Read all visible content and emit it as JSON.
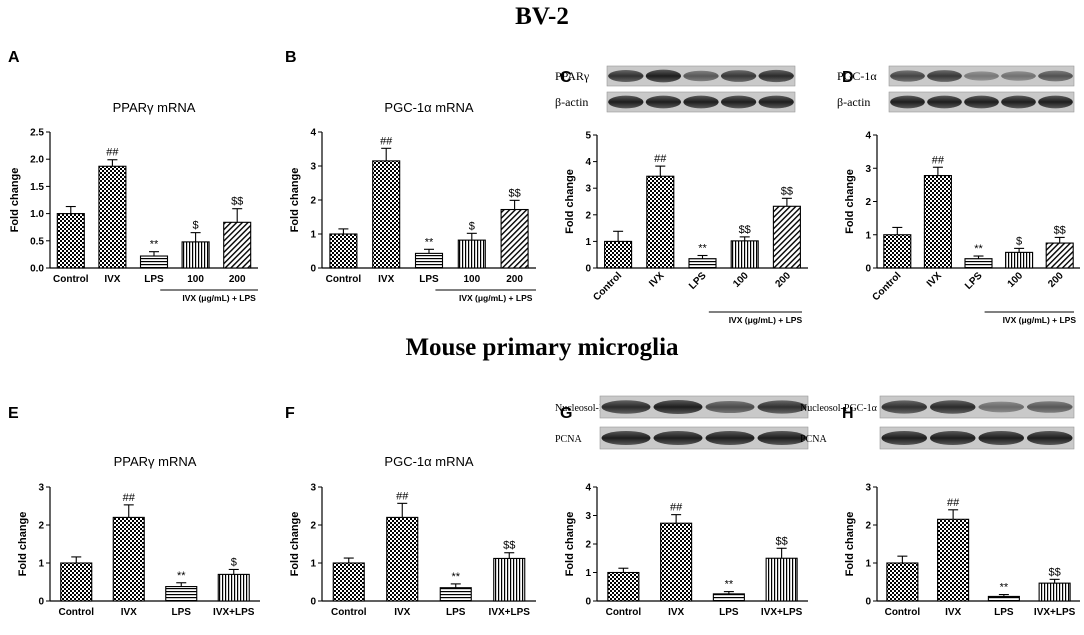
{
  "sections": [
    {
      "title": "BV-2"
    },
    {
      "title": "Mouse primary microglia"
    }
  ],
  "colors": {
    "bar_stroke": "#000000",
    "background": "#ffffff"
  },
  "chart_data": [
    {
      "panel": "A",
      "type": "bar",
      "title": "PPARγ mRNA",
      "ylabel": "Fold change",
      "categories": [
        "Control",
        "IVX",
        "LPS",
        "100",
        "200"
      ],
      "values": [
        1.0,
        1.87,
        0.22,
        0.48,
        0.84
      ],
      "errors": [
        0.13,
        0.12,
        0.08,
        0.17,
        0.25
      ],
      "annotations": [
        "",
        "##",
        "**",
        "$",
        "$$"
      ],
      "patterns": [
        "check",
        "check",
        "hstripe",
        "vstripe",
        "diag"
      ],
      "ylim": [
        0,
        2.5
      ],
      "yticks": [
        0,
        0.5,
        1.0,
        1.5,
        2.0,
        2.5
      ],
      "tick_labels": [
        "0.0",
        "0.5",
        "1.0",
        "1.5",
        "2.0",
        "2.5"
      ],
      "group_label": "IVX (μg/mL) + LPS",
      "xlabels_rotated": false
    },
    {
      "panel": "B",
      "type": "bar",
      "title": "PGC-1α mRNA",
      "ylabel": "Fold change",
      "categories": [
        "Control",
        "IVX",
        "LPS",
        "100",
        "200"
      ],
      "values": [
        1.0,
        3.15,
        0.43,
        0.82,
        1.72
      ],
      "errors": [
        0.15,
        0.37,
        0.12,
        0.2,
        0.27
      ],
      "annotations": [
        "",
        "##",
        "**",
        "$",
        "$$"
      ],
      "patterns": [
        "check",
        "check",
        "hstripe",
        "vstripe",
        "diag"
      ],
      "ylim": [
        0,
        4
      ],
      "yticks": [
        0,
        1,
        2,
        3,
        4
      ],
      "tick_labels": [
        "0",
        "1",
        "2",
        "3",
        "4"
      ],
      "group_label": "IVX (μg/mL) + LPS",
      "xlabels_rotated": false
    },
    {
      "panel": "C",
      "type": "bar",
      "ylabel": "Fold change",
      "categories": [
        "Control",
        "IVX",
        "LPS",
        "100",
        "200"
      ],
      "values": [
        1.0,
        3.45,
        0.35,
        1.02,
        2.32
      ],
      "errors": [
        0.38,
        0.38,
        0.12,
        0.15,
        0.3
      ],
      "annotations": [
        "",
        "##",
        "**",
        "$$",
        "$$"
      ],
      "patterns": [
        "check",
        "check",
        "hstripe",
        "vstripe",
        "diag"
      ],
      "ylim": [
        0,
        5
      ],
      "yticks": [
        0,
        1,
        2,
        3,
        4,
        5
      ],
      "tick_labels": [
        "0",
        "1",
        "2",
        "3",
        "4",
        "5"
      ],
      "group_label": "IVX (μg/mL) + LPS",
      "xlabels_rotated": true,
      "blot_labels": [
        "PPARγ",
        "β-actin"
      ]
    },
    {
      "panel": "D",
      "type": "bar",
      "ylabel": "Fold change",
      "categories": [
        "Control",
        "IVX",
        "LPS",
        "100",
        "200"
      ],
      "values": [
        1.0,
        2.78,
        0.28,
        0.47,
        0.75
      ],
      "errors": [
        0.22,
        0.25,
        0.08,
        0.12,
        0.17
      ],
      "annotations": [
        "",
        "##",
        "**",
        "$",
        "$$"
      ],
      "patterns": [
        "check",
        "check",
        "hstripe",
        "vstripe",
        "diag"
      ],
      "ylim": [
        0,
        4
      ],
      "yticks": [
        0,
        1,
        2,
        3,
        4
      ],
      "tick_labels": [
        "0",
        "1",
        "2",
        "3",
        "4"
      ],
      "group_label": "IVX (μg/mL) + LPS",
      "xlabels_rotated": true,
      "blot_labels": [
        "PGC-1α",
        "β-actin"
      ]
    },
    {
      "panel": "E",
      "type": "bar",
      "title": "PPARγ mRNA",
      "ylabel": "Fold change",
      "categories": [
        "Control",
        "IVX",
        "LPS",
        "IVX+LPS"
      ],
      "values": [
        1.0,
        2.2,
        0.38,
        0.7
      ],
      "errors": [
        0.16,
        0.33,
        0.1,
        0.13
      ],
      "annotations": [
        "",
        "##",
        "**",
        "$"
      ],
      "patterns": [
        "check",
        "check",
        "hstripe",
        "vstripe"
      ],
      "ylim": [
        0,
        3
      ],
      "yticks": [
        0,
        1,
        2,
        3
      ],
      "tick_labels": [
        "0",
        "1",
        "2",
        "3"
      ],
      "group_label": "",
      "xlabels_rotated": false
    },
    {
      "panel": "F",
      "type": "bar",
      "title": "PGC-1α mRNA",
      "ylabel": "Fold change",
      "categories": [
        "Control",
        "IVX",
        "LPS",
        "IVX+LPS"
      ],
      "values": [
        1.0,
        2.2,
        0.35,
        1.12
      ],
      "errors": [
        0.13,
        0.37,
        0.1,
        0.15
      ],
      "annotations": [
        "",
        "##",
        "**",
        "$$"
      ],
      "patterns": [
        "check",
        "check",
        "hstripe",
        "vstripe"
      ],
      "ylim": [
        0,
        3
      ],
      "yticks": [
        0,
        1,
        2,
        3
      ],
      "tick_labels": [
        "0",
        "1",
        "2",
        "3"
      ],
      "group_label": "",
      "xlabels_rotated": false
    },
    {
      "panel": "G",
      "type": "bar",
      "ylabel": "Fold change",
      "categories": [
        "Control",
        "IVX",
        "LPS",
        "IVX+LPS"
      ],
      "values": [
        1.0,
        2.73,
        0.25,
        1.5
      ],
      "errors": [
        0.15,
        0.3,
        0.08,
        0.35
      ],
      "annotations": [
        "",
        "##",
        "**",
        "$$"
      ],
      "patterns": [
        "check",
        "check",
        "hstripe",
        "vstripe"
      ],
      "ylim": [
        0,
        4
      ],
      "yticks": [
        0,
        1,
        2,
        3,
        4
      ],
      "tick_labels": [
        "0",
        "1",
        "2",
        "3",
        "4"
      ],
      "group_label": "",
      "xlabels_rotated": false,
      "blot_labels": [
        "Nucleosol-PPARγ",
        "PCNA"
      ]
    },
    {
      "panel": "H",
      "type": "bar",
      "ylabel": "Fold change",
      "categories": [
        "Control",
        "IVX",
        "LPS",
        "IVX+LPS"
      ],
      "values": [
        1.0,
        2.15,
        0.12,
        0.47
      ],
      "errors": [
        0.18,
        0.25,
        0.05,
        0.1
      ],
      "annotations": [
        "",
        "##",
        "**",
        "$$"
      ],
      "patterns": [
        "check",
        "check",
        "hstripe",
        "vstripe"
      ],
      "ylim": [
        0,
        3
      ],
      "yticks": [
        0,
        1,
        2,
        3
      ],
      "tick_labels": [
        "0",
        "1",
        "2",
        "3"
      ],
      "group_label": "",
      "xlabels_rotated": false,
      "blot_labels": [
        "Nucleosol-PGC-1α",
        "PCNA"
      ]
    }
  ]
}
